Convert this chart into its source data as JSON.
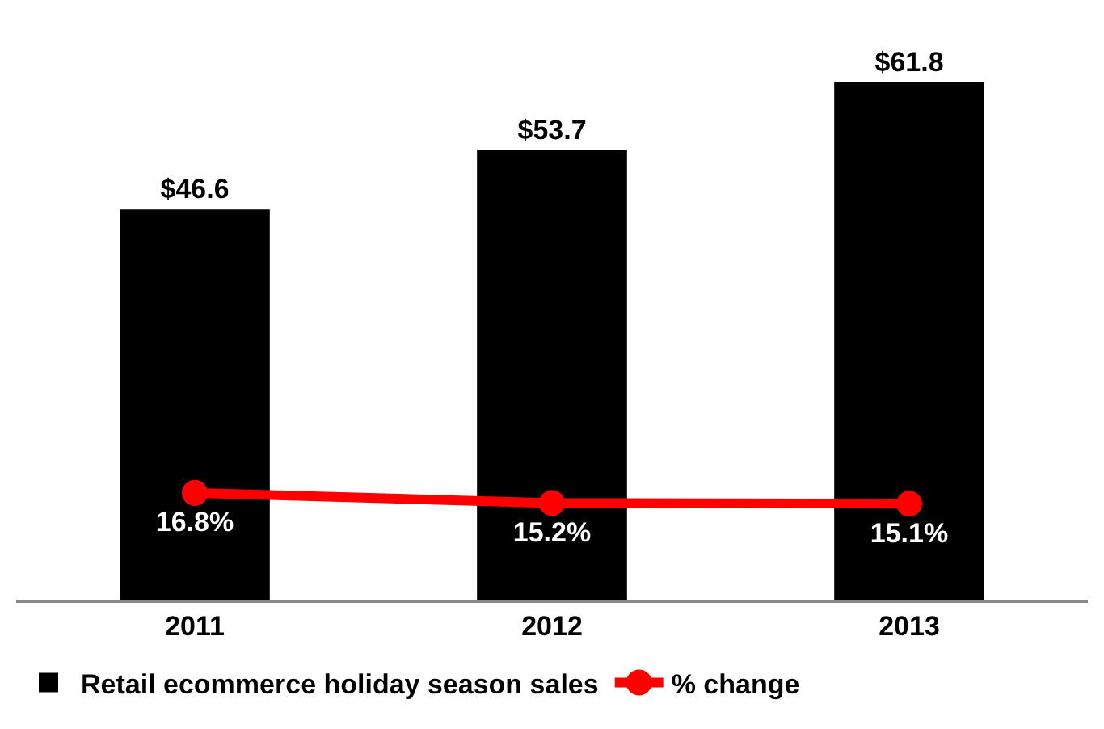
{
  "chart_data": {
    "type": "bar",
    "categories": [
      "2011",
      "2012",
      "2013"
    ],
    "series": [
      {
        "name": "Retail ecommerce holiday season sales",
        "color": "#000000",
        "values": [
          46.6,
          53.7,
          61.8
        ],
        "value_labels": [
          "$46.6",
          "$53.7",
          "$61.8"
        ]
      },
      {
        "name": "% change",
        "type": "line",
        "axis": "y2",
        "color": "#ff0000",
        "values": [
          16.8,
          15.2,
          15.1
        ],
        "value_labels": [
          "16.8%",
          "15.2%",
          "15.1%"
        ]
      }
    ],
    "tick_labels": "x",
    "grid": false,
    "legend": "bottom",
    "marker": "circle",
    "line_style": "solid"
  }
}
